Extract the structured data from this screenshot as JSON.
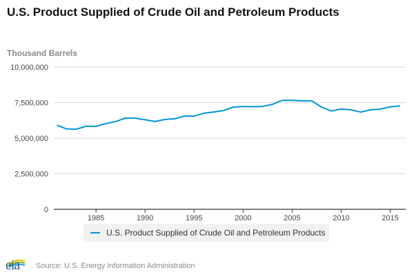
{
  "chart_data": {
    "type": "line",
    "title": "U.S. Product Supplied of Crude Oil and Petroleum Products",
    "ylabel": "Thousand Barrels",
    "xlabel": "",
    "ylim": [
      0,
      10000000
    ],
    "xlim": [
      1980.7,
      2016.3
    ],
    "yticks": [
      0,
      2500000,
      5000000,
      7500000,
      10000000
    ],
    "ytick_labels": [
      "0",
      "2,500,000",
      "5,000,000",
      "7,500,000",
      "10,000,000"
    ],
    "xticks": [
      1985,
      1990,
      1995,
      2000,
      2005,
      2010,
      2015
    ],
    "xtick_labels": [
      "1985",
      "1990",
      "1995",
      "2000",
      "2005",
      "2010",
      "2015"
    ],
    "grid": true,
    "legend_position": "bottom-center",
    "x": [
      1981,
      1982,
      1983,
      1984,
      1985,
      1986,
      1987,
      1988,
      1989,
      1990,
      1991,
      1992,
      1993,
      1994,
      1995,
      1996,
      1997,
      1998,
      1999,
      2000,
      2001,
      2002,
      2003,
      2004,
      2005,
      2006,
      2007,
      2008,
      2009,
      2010,
      2011,
      2012,
      2013,
      2014,
      2015,
      2016
    ],
    "series": [
      {
        "name": "U.S. Product Supplied of Crude Oil and Petroleum Products",
        "color": "#0096d7",
        "values": [
          5910000,
          5650000,
          5630000,
          5840000,
          5830000,
          6020000,
          6170000,
          6410000,
          6410000,
          6290000,
          6170000,
          6310000,
          6360000,
          6550000,
          6550000,
          6750000,
          6840000,
          6940000,
          7180000,
          7230000,
          7210000,
          7230000,
          7380000,
          7660000,
          7660000,
          7620000,
          7620000,
          7180000,
          6910000,
          7050000,
          6990000,
          6830000,
          6990000,
          7040000,
          7200000,
          7260000
        ]
      }
    ]
  },
  "footer": {
    "logo_text": "eia",
    "source": "Source: U.S. Energy Information Administration"
  }
}
